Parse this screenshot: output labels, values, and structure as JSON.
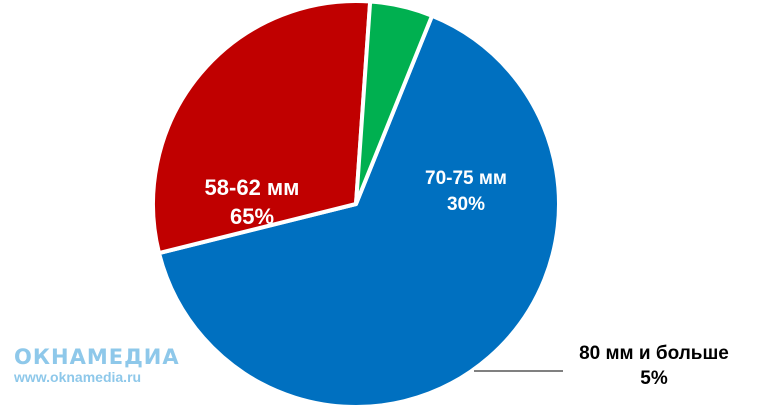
{
  "chart_data": {
    "type": "pie",
    "start_angle_deg": 22,
    "slices": [
      {
        "category": "58-62 мм",
        "value_label": "65%",
        "value": 65,
        "color": "#0070c0"
      },
      {
        "category": "70-75 мм",
        "value_label": "30%",
        "value": 30,
        "color": "#c00000"
      },
      {
        "category": "80 мм и больше",
        "value_label": "5%",
        "value": 5,
        "color": "#00b050"
      }
    ]
  },
  "watermark": {
    "logo": "ОКНАМЕДИА",
    "url": "www.oknamedia.ru"
  }
}
